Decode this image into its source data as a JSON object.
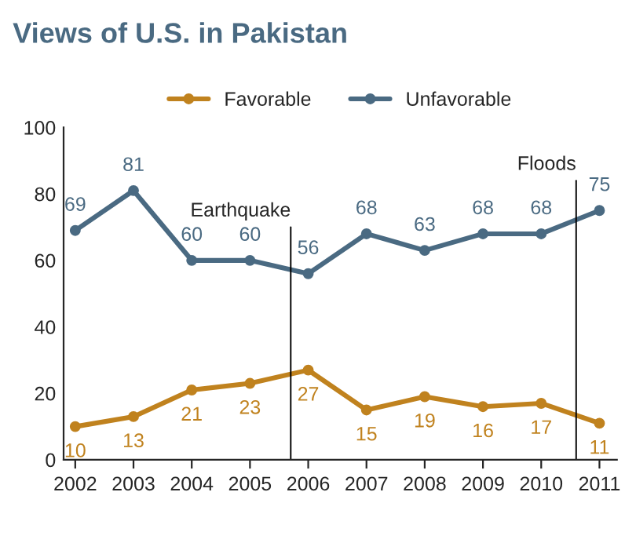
{
  "chart_data": {
    "type": "line",
    "title": "Views of U.S. in Pakistan",
    "x": [
      2002,
      2003,
      2004,
      2005,
      2006,
      2007,
      2008,
      2009,
      2010,
      2011
    ],
    "series": [
      {
        "name": "Favorable",
        "color": "#c0821e",
        "values": [
          10,
          13,
          21,
          23,
          27,
          15,
          19,
          16,
          17,
          11
        ]
      },
      {
        "name": "Unfavorable",
        "color": "#4a6a82",
        "values": [
          69,
          81,
          60,
          60,
          56,
          68,
          63,
          68,
          68,
          75
        ]
      }
    ],
    "xlim": [
      2001.8,
      2011.3
    ],
    "xticks": [
      2002,
      2003,
      2004,
      2005,
      2006,
      2007,
      2008,
      2009,
      2010,
      2011
    ],
    "ylim": [
      0,
      100
    ],
    "yticks": [
      0,
      20,
      40,
      60,
      80,
      100
    ],
    "ref_lines": [
      {
        "axis": "x",
        "value": 2005.7,
        "label": "Earthquake",
        "color": "#000000"
      },
      {
        "axis": "x",
        "value": 2010.6,
        "label": "Floods",
        "color": "#000000"
      }
    ],
    "data_labels": true,
    "legend": "top",
    "marker": "circle",
    "line_style": "solid",
    "grid": false
  }
}
